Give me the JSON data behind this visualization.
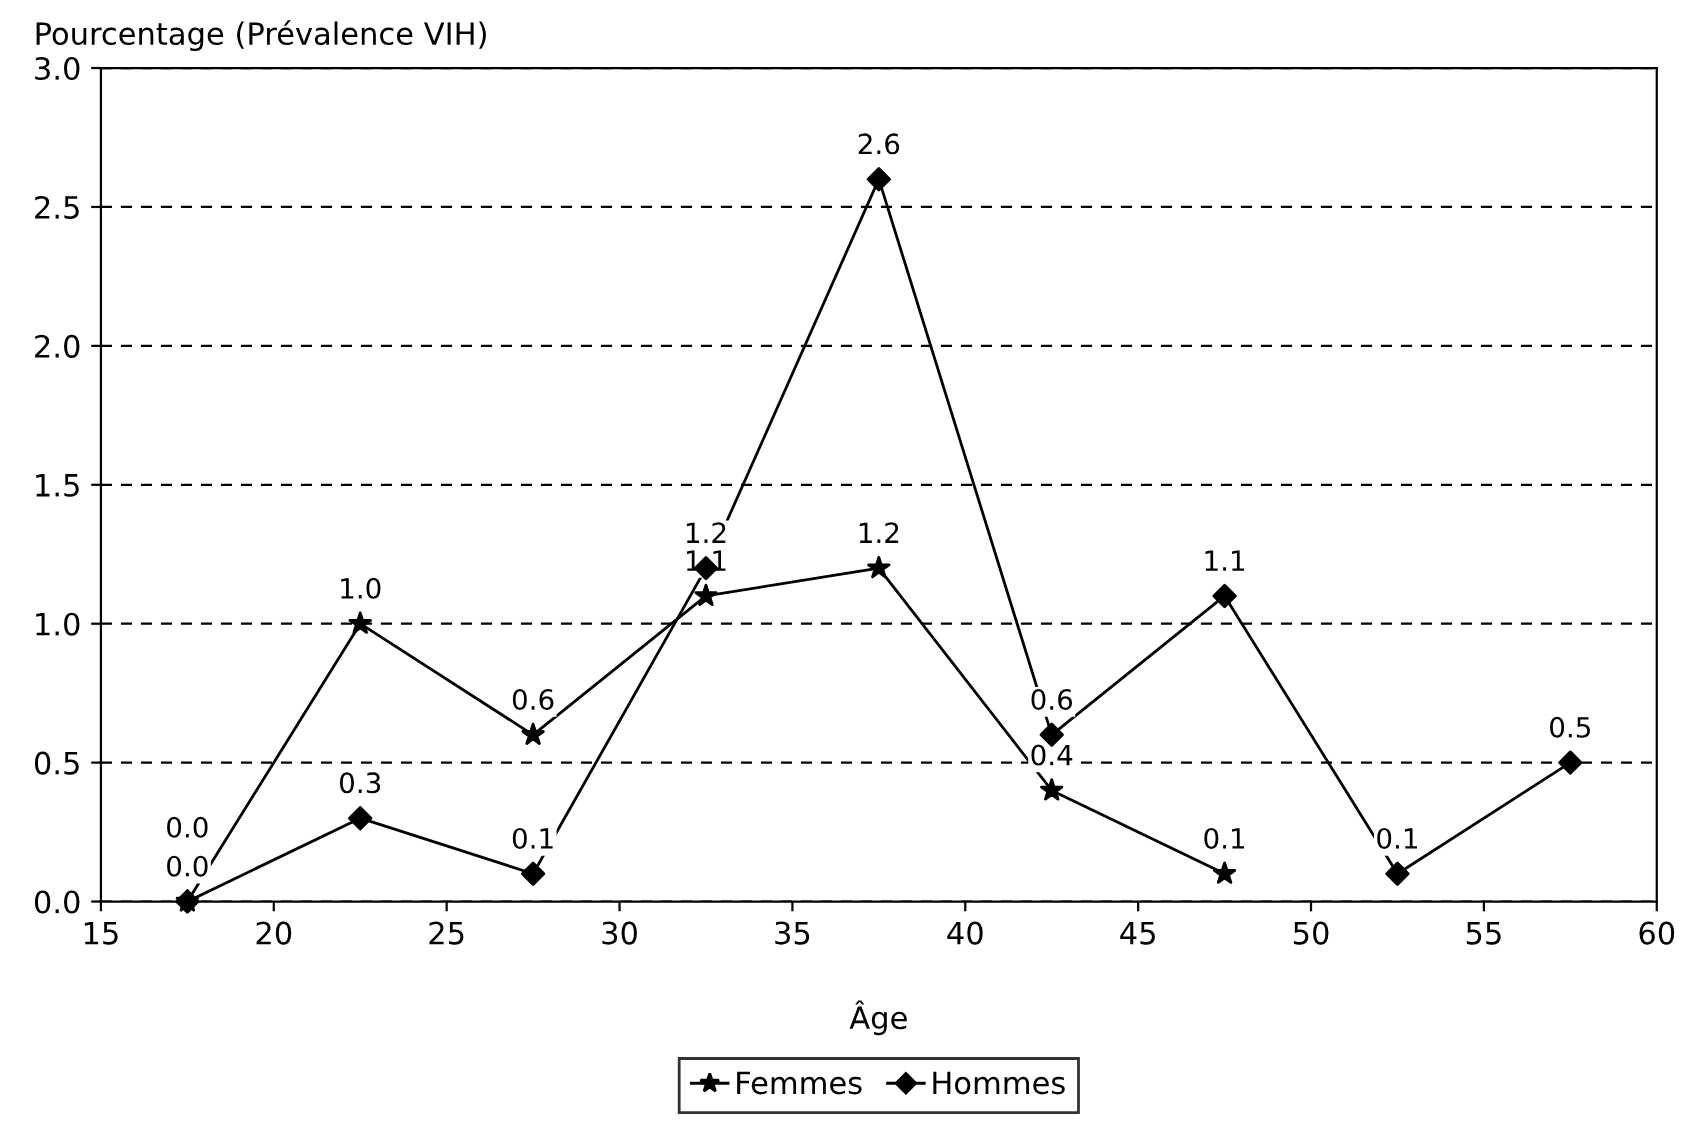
{
  "chart_data": {
    "type": "line",
    "ylabel": "Pourcentage (Prévalence VIH)",
    "xlabel": "Âge",
    "xlim": [
      15,
      60
    ],
    "xticks": [
      15,
      20,
      25,
      30,
      35,
      40,
      45,
      50,
      55,
      60
    ],
    "ylim": [
      0,
      3
    ],
    "yticks": [
      {
        "value": 0,
        "label": "0.0"
      },
      {
        "value": 0.5,
        "label": "0.5"
      },
      {
        "value": 1,
        "label": "1.0"
      },
      {
        "value": 1.5,
        "label": "1.5"
      },
      {
        "value": 2,
        "label": "2.0"
      },
      {
        "value": 2.5,
        "label": "2.5"
      },
      {
        "value": 3,
        "label": "3.0"
      }
    ],
    "grid": "y",
    "legend": "bottom",
    "line_style": "solid",
    "series": [
      {
        "name": "Femmes",
        "color": "#000000",
        "marker": "star",
        "x": [
          17.5,
          22.5,
          27.5,
          32.5,
          37.5,
          42.5,
          47.5
        ],
        "values": [
          0.0,
          1.0,
          0.6,
          1.1,
          1.2,
          0.4,
          0.1
        ],
        "value_labels": [
          "0.0",
          "1.0",
          "0.6",
          "1.1",
          "1.2",
          "0.4",
          "0.1"
        ]
      },
      {
        "name": "Hommes",
        "color": "#000000",
        "marker": "diamond",
        "x": [
          17.5,
          22.5,
          27.5,
          32.5,
          37.5,
          42.5,
          47.5,
          52.5,
          57.5
        ],
        "values": [
          0.0,
          0.3,
          0.1,
          1.2,
          2.6,
          0.6,
          1.1,
          0.1,
          0.5
        ],
        "value_labels": [
          "0.0",
          "0.3",
          "0.1",
          "1.2",
          "2.6",
          "0.6",
          "1.1",
          "0.1",
          "0.5"
        ]
      }
    ]
  }
}
